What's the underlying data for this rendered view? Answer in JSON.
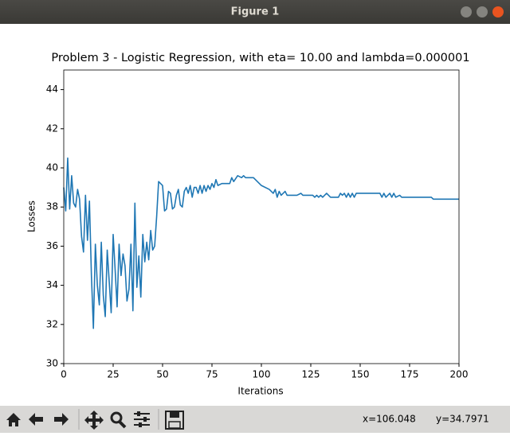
{
  "window": {
    "title": "Figure 1",
    "coord_x": "x=106.048",
    "coord_y": "y=34.7971"
  },
  "chart_data": {
    "type": "line",
    "title": "Problem 3 - Logistic Regression, with eta= 10.00 and lambda=0.000001",
    "x_label": "Iterations",
    "y_label": "Losses",
    "xlim": [
      0,
      200
    ],
    "ylim": [
      30,
      45
    ],
    "xticks": [
      0,
      25,
      50,
      75,
      100,
      125,
      150,
      175,
      200
    ],
    "yticks": [
      30,
      32,
      34,
      36,
      38,
      40,
      42,
      44
    ],
    "series": [
      {
        "color": "#1f77b4",
        "x": [
          0,
          1,
          2,
          3,
          4,
          5,
          6,
          7,
          8,
          9,
          10,
          11,
          12,
          13,
          14,
          15,
          16,
          17,
          18,
          19,
          20,
          21,
          22,
          23,
          24,
          25,
          26,
          27,
          28,
          29,
          30,
          31,
          32,
          33,
          34,
          35,
          36,
          37,
          38,
          39,
          40,
          41,
          42,
          43,
          44,
          45,
          46,
          47,
          48,
          49,
          50,
          51,
          52,
          53,
          54,
          55,
          56,
          57,
          58,
          59,
          60,
          61,
          62,
          63,
          64,
          65,
          66,
          67,
          68,
          69,
          70,
          71,
          72,
          73,
          74,
          75,
          76,
          77,
          78,
          80,
          82,
          84,
          85,
          86,
          88,
          90,
          91,
          92,
          96,
          100,
          104,
          106,
          107,
          108,
          109,
          110,
          112,
          113,
          118,
          120,
          121,
          126,
          127,
          128,
          129,
          130,
          131,
          133,
          135,
          139,
          140,
          141,
          142,
          143,
          144,
          145,
          146,
          147,
          148,
          160,
          161,
          162,
          163,
          165,
          166,
          167,
          168,
          170,
          171,
          186,
          187,
          200
        ],
        "values": [
          39.0,
          37.8,
          40.5,
          37.9,
          39.6,
          38.2,
          38.0,
          38.9,
          38.4,
          36.5,
          35.7,
          38.6,
          36.3,
          38.3,
          34.5,
          31.8,
          36.1,
          34.0,
          33.0,
          36.2,
          33.5,
          32.4,
          35.8,
          34.2,
          32.6,
          36.6,
          34.8,
          32.9,
          36.1,
          34.5,
          35.6,
          35.0,
          33.2,
          33.8,
          36.1,
          32.7,
          38.2,
          33.9,
          35.5,
          33.4,
          36.6,
          35.2,
          36.2,
          35.3,
          36.8,
          35.8,
          36.0,
          37.5,
          39.3,
          39.2,
          39.1,
          37.8,
          37.9,
          38.8,
          38.7,
          37.9,
          38.0,
          38.6,
          38.9,
          38.1,
          38.0,
          38.8,
          39.0,
          38.7,
          39.1,
          38.5,
          39.0,
          39.0,
          38.7,
          39.1,
          38.7,
          39.1,
          38.8,
          39.1,
          38.9,
          39.2,
          39.0,
          39.4,
          39.1,
          39.2,
          39.2,
          39.2,
          39.5,
          39.3,
          39.6,
          39.5,
          39.6,
          39.5,
          39.5,
          39.1,
          38.9,
          38.7,
          38.9,
          38.5,
          38.8,
          38.6,
          38.8,
          38.6,
          38.6,
          38.7,
          38.6,
          38.6,
          38.5,
          38.6,
          38.5,
          38.6,
          38.5,
          38.7,
          38.5,
          38.5,
          38.7,
          38.6,
          38.7,
          38.5,
          38.7,
          38.5,
          38.7,
          38.5,
          38.7,
          38.7,
          38.5,
          38.7,
          38.5,
          38.7,
          38.5,
          38.7,
          38.5,
          38.6,
          38.5,
          38.5,
          38.4,
          38.4
        ]
      }
    ]
  }
}
